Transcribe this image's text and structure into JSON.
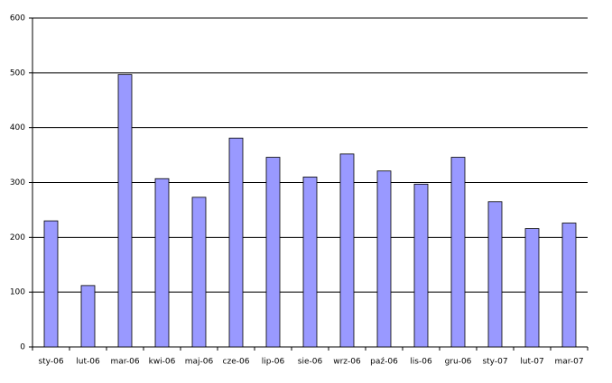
{
  "chart_data": {
    "type": "bar",
    "categories": [
      "sty-06",
      "lut-06",
      "mar-06",
      "kwi-06",
      "maj-06",
      "cze-06",
      "lip-06",
      "sie-06",
      "wrz-06",
      "paź-06",
      "lis-06",
      "gru-06",
      "sty-07",
      "lut-07",
      "mar-07"
    ],
    "values": [
      230,
      112,
      497,
      307,
      273,
      381,
      346,
      310,
      352,
      321,
      297,
      346,
      265,
      216,
      226
    ],
    "color": "#9999ff",
    "ylim": [
      0,
      600
    ],
    "yticks": [
      0,
      100,
      200,
      300,
      400,
      500,
      600
    ],
    "grid": true
  }
}
